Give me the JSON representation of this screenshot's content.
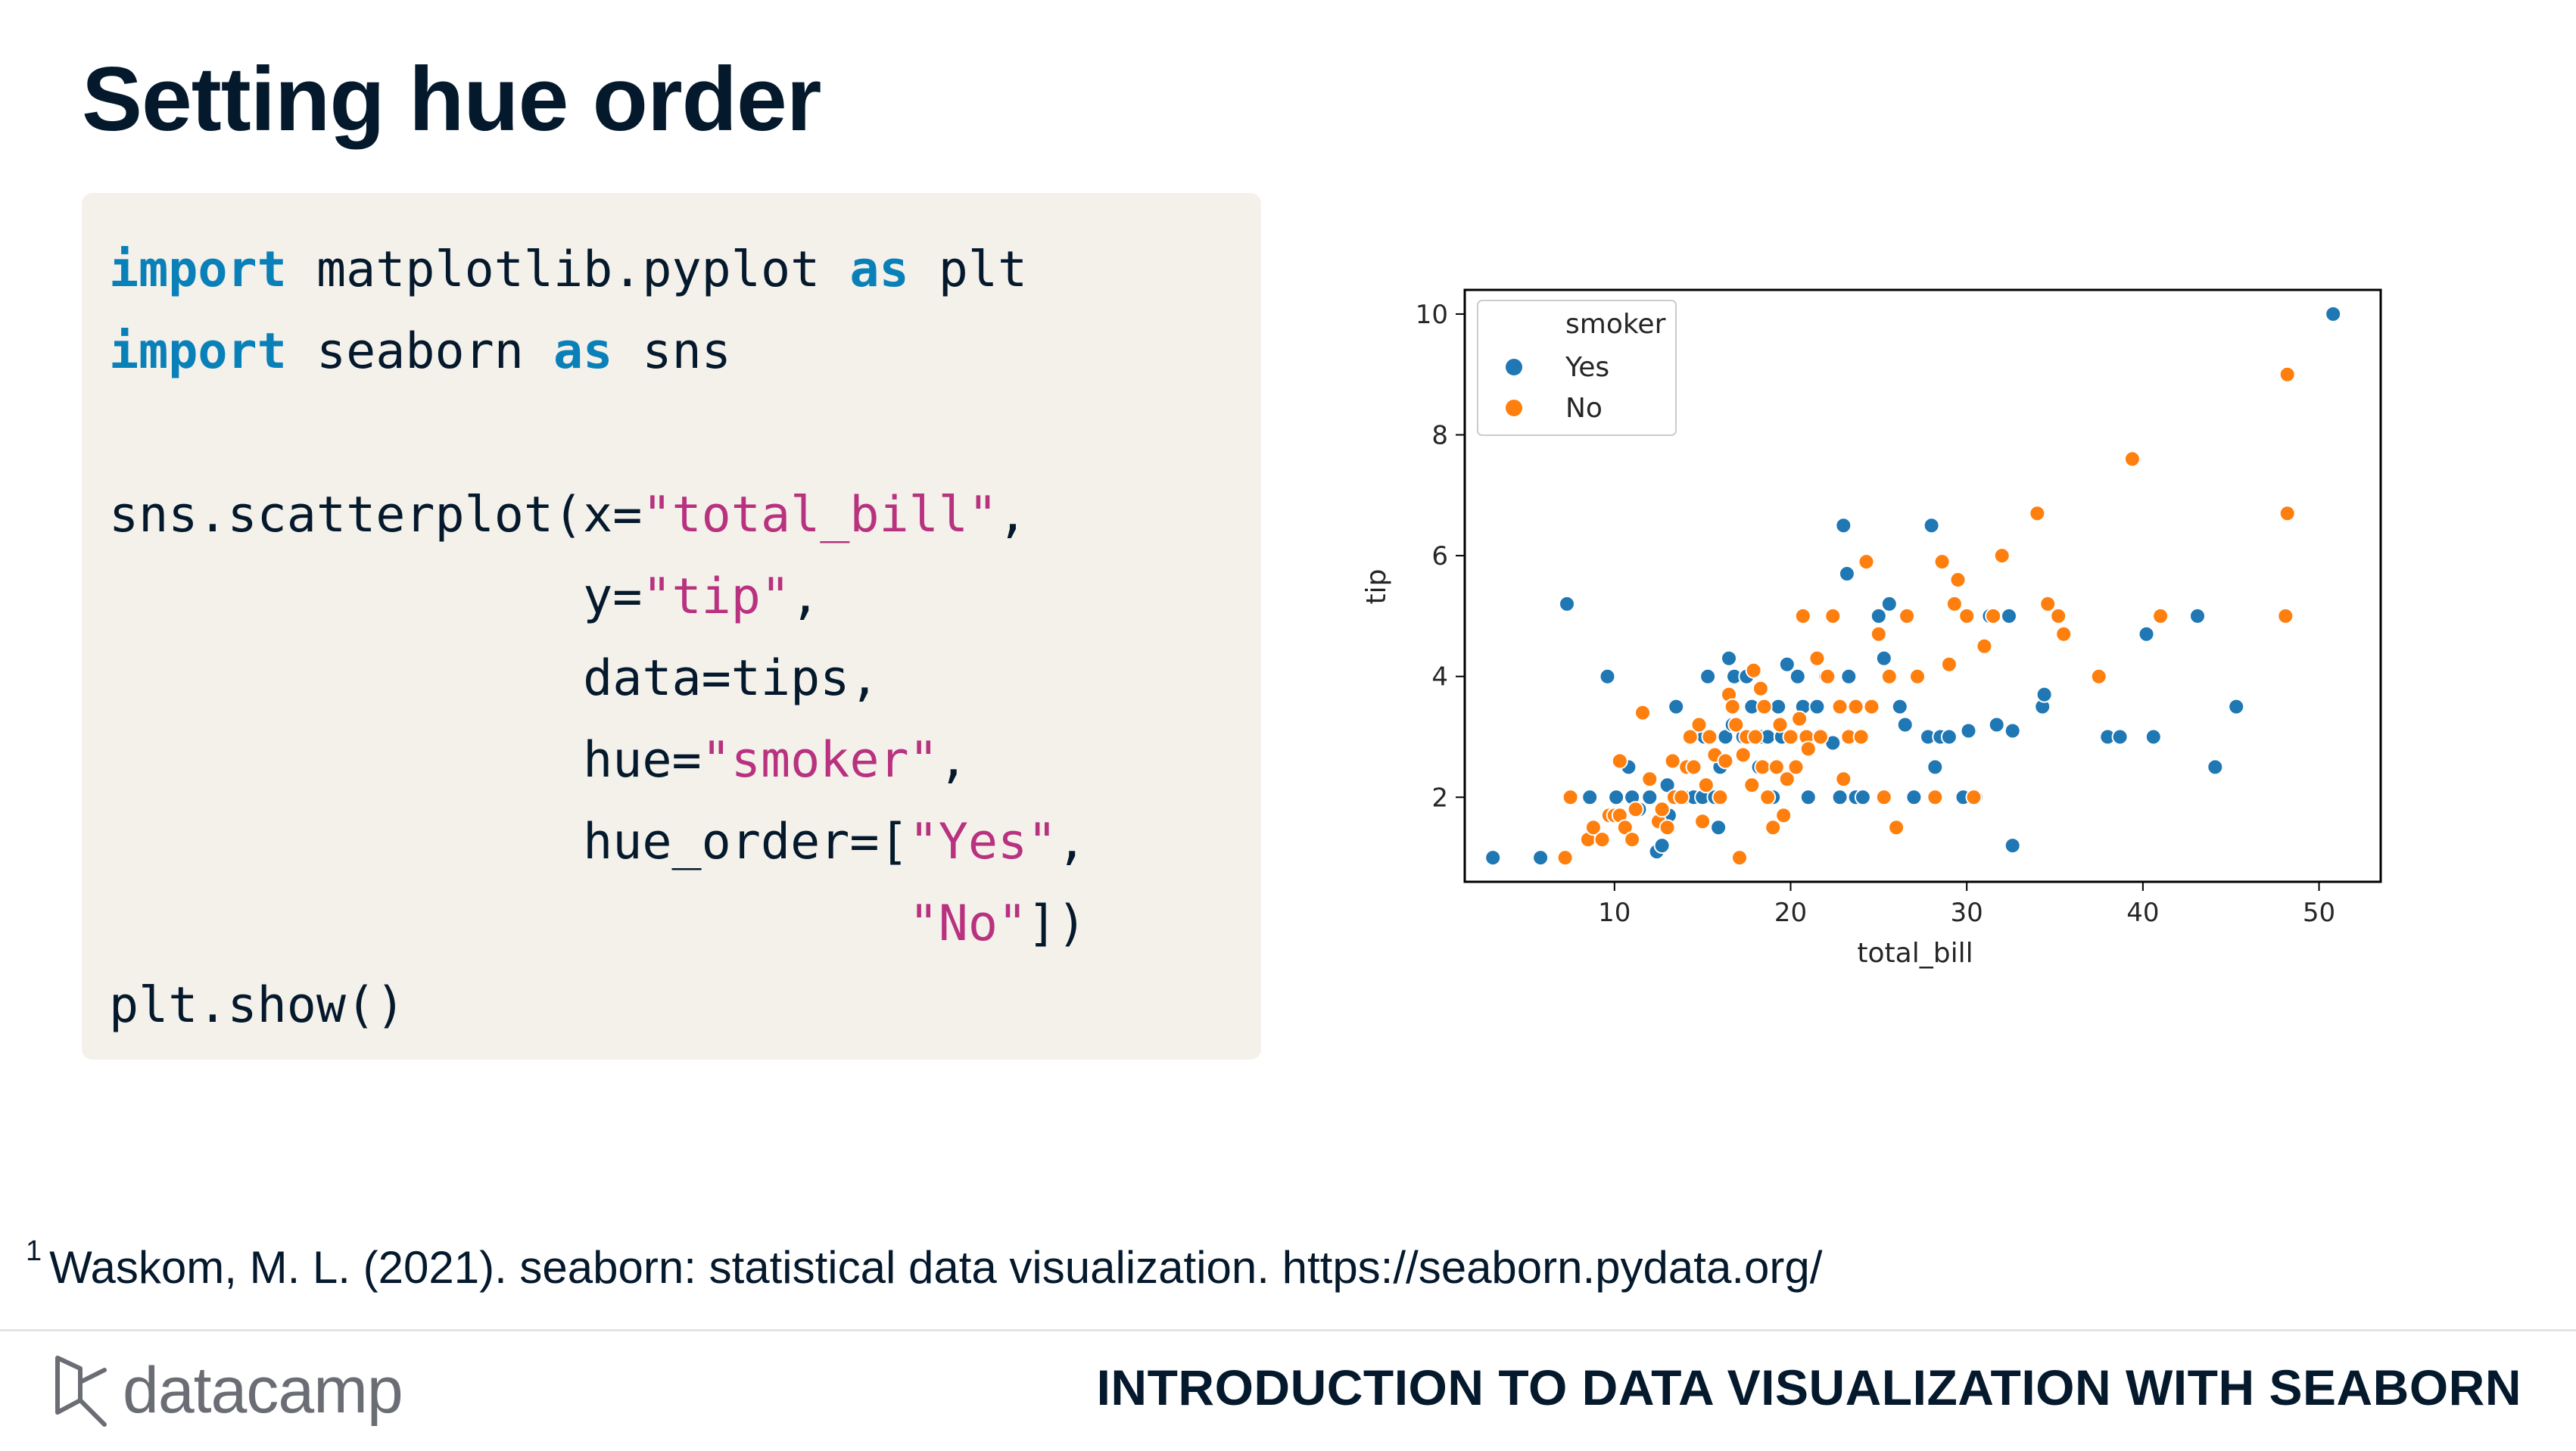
{
  "slide": {
    "title": "Setting hue order",
    "code": [
      [
        {
          "t": "kw",
          "v": "import"
        },
        {
          "t": "",
          "v": " matplotlib.pyplot "
        },
        {
          "t": "kw",
          "v": "as"
        },
        {
          "t": "",
          "v": " plt"
        }
      ],
      [
        {
          "t": "kw",
          "v": "import"
        },
        {
          "t": "",
          "v": " seaborn "
        },
        {
          "t": "kw",
          "v": "as"
        },
        {
          "t": "",
          "v": " sns"
        }
      ],
      [],
      [
        {
          "t": "",
          "v": "sns.scatterplot(x="
        },
        {
          "t": "str",
          "v": "\"total_bill\""
        },
        {
          "t": "",
          "v": ","
        }
      ],
      [
        {
          "t": "",
          "v": "                y="
        },
        {
          "t": "str",
          "v": "\"tip\""
        },
        {
          "t": "",
          "v": ","
        }
      ],
      [
        {
          "t": "",
          "v": "                data=tips,"
        }
      ],
      [
        {
          "t": "",
          "v": "                hue="
        },
        {
          "t": "str",
          "v": "\"smoker\""
        },
        {
          "t": "",
          "v": ","
        }
      ],
      [
        {
          "t": "",
          "v": "                hue_order=["
        },
        {
          "t": "str",
          "v": "\"Yes\""
        },
        {
          "t": "",
          "v": ","
        }
      ],
      [
        {
          "t": "",
          "v": "                           "
        },
        {
          "t": "str",
          "v": "\"No\""
        },
        {
          "t": "",
          "v": "])"
        }
      ],
      [
        {
          "t": "",
          "v": "plt.show()"
        }
      ]
    ],
    "footnote_marker": "1",
    "footnote": "Waskom, M. L. (2021). seaborn: statistical data visualization. https://seaborn.pydata.org/",
    "brand": "datacamp",
    "course_title": "INTRODUCTION TO DATA VISUALIZATION WITH SEABORN"
  },
  "colors": {
    "keyword": "#0a80b9",
    "string": "#b83280",
    "yes": "#1f77b4",
    "no": "#ff7f0e",
    "code_bg": "#f4f1ea"
  },
  "chart_data": {
    "type": "scatter",
    "xlabel": "total_bill",
    "ylabel": "tip",
    "xlim": [
      1.5,
      53.5
    ],
    "ylim": [
      0.6,
      10.4
    ],
    "xticks": [
      10,
      20,
      30,
      40,
      50
    ],
    "yticks": [
      2,
      4,
      6,
      8,
      10
    ],
    "legend": {
      "title": "smoker",
      "position": "upper-left"
    },
    "series": [
      {
        "name": "Yes",
        "color": "#1f77b4",
        "points": [
          [
            3.1,
            1.0
          ],
          [
            5.8,
            1.0
          ],
          [
            7.3,
            5.2
          ],
          [
            8.6,
            2.0
          ],
          [
            9.6,
            4.0
          ],
          [
            10.1,
            2.0
          ],
          [
            10.8,
            2.5
          ],
          [
            11.0,
            2.0
          ],
          [
            11.4,
            1.8
          ],
          [
            12.0,
            2.0
          ],
          [
            12.4,
            1.1
          ],
          [
            12.7,
            1.2
          ],
          [
            13.0,
            2.2
          ],
          [
            13.1,
            1.7
          ],
          [
            13.4,
            2.0
          ],
          [
            13.5,
            3.5
          ],
          [
            14.0,
            2.0
          ],
          [
            14.5,
            2.0
          ],
          [
            15.0,
            2.0
          ],
          [
            15.1,
            3.0
          ],
          [
            15.3,
            4.0
          ],
          [
            15.7,
            2.0
          ],
          [
            15.9,
            1.5
          ],
          [
            16.0,
            2.5
          ],
          [
            16.3,
            3.0
          ],
          [
            16.5,
            4.3
          ],
          [
            16.7,
            3.2
          ],
          [
            16.8,
            4.0
          ],
          [
            17.3,
            3.0
          ],
          [
            17.5,
            4.0
          ],
          [
            17.8,
            3.5
          ],
          [
            18.2,
            2.5
          ],
          [
            18.3,
            3.0
          ],
          [
            18.7,
            3.0
          ],
          [
            19.0,
            2.0
          ],
          [
            19.3,
            3.5
          ],
          [
            19.5,
            3.0
          ],
          [
            19.8,
            4.2
          ],
          [
            20.1,
            3.0
          ],
          [
            20.4,
            4.0
          ],
          [
            20.7,
            3.5
          ],
          [
            21.0,
            2.0
          ],
          [
            21.5,
            3.5
          ],
          [
            22.0,
            4.0
          ],
          [
            22.4,
            2.9
          ],
          [
            22.8,
            2.0
          ],
          [
            23.0,
            6.5
          ],
          [
            23.2,
            5.7
          ],
          [
            23.3,
            4.0
          ],
          [
            23.7,
            2.0
          ],
          [
            24.1,
            2.0
          ],
          [
            24.5,
            3.5
          ],
          [
            25.0,
            5.0
          ],
          [
            25.3,
            4.3
          ],
          [
            25.6,
            5.2
          ],
          [
            26.2,
            3.5
          ],
          [
            26.5,
            3.2
          ],
          [
            27.0,
            2.0
          ],
          [
            27.2,
            4.0
          ],
          [
            27.8,
            3.0
          ],
          [
            28.0,
            6.5
          ],
          [
            28.2,
            2.5
          ],
          [
            28.5,
            3.0
          ],
          [
            29.0,
            3.0
          ],
          [
            29.8,
            2.0
          ],
          [
            30.1,
            3.1
          ],
          [
            30.5,
            2.0
          ],
          [
            31.3,
            5.0
          ],
          [
            31.7,
            3.2
          ],
          [
            32.4,
            5.0
          ],
          [
            32.6,
            3.1
          ],
          [
            32.6,
            1.2
          ],
          [
            34.3,
            3.5
          ],
          [
            34.4,
            3.7
          ],
          [
            38.0,
            3.0
          ],
          [
            38.7,
            3.0
          ],
          [
            40.2,
            4.7
          ],
          [
            40.6,
            3.0
          ],
          [
            43.1,
            5.0
          ],
          [
            44.1,
            2.5
          ],
          [
            45.3,
            3.5
          ],
          [
            50.8,
            10.0
          ]
        ]
      },
      {
        "name": "No",
        "color": "#ff7f0e",
        "points": [
          [
            7.2,
            1.0
          ],
          [
            7.5,
            2.0
          ],
          [
            8.5,
            1.3
          ],
          [
            8.8,
            1.5
          ],
          [
            9.3,
            1.3
          ],
          [
            9.7,
            1.7
          ],
          [
            10.0,
            1.7
          ],
          [
            10.3,
            1.7
          ],
          [
            10.3,
            2.6
          ],
          [
            10.6,
            1.5
          ],
          [
            11.0,
            1.3
          ],
          [
            11.2,
            1.8
          ],
          [
            11.6,
            3.4
          ],
          [
            12.0,
            2.3
          ],
          [
            12.5,
            1.6
          ],
          [
            12.7,
            1.8
          ],
          [
            13.0,
            1.5
          ],
          [
            13.3,
            2.6
          ],
          [
            13.4,
            2.0
          ],
          [
            13.8,
            2.0
          ],
          [
            14.1,
            2.5
          ],
          [
            14.3,
            3.0
          ],
          [
            14.5,
            2.5
          ],
          [
            14.8,
            3.2
          ],
          [
            15.0,
            1.6
          ],
          [
            15.2,
            2.2
          ],
          [
            15.4,
            3.0
          ],
          [
            15.7,
            2.7
          ],
          [
            16.0,
            2.0
          ],
          [
            16.3,
            2.6
          ],
          [
            16.5,
            3.7
          ],
          [
            16.7,
            3.5
          ],
          [
            16.9,
            3.2
          ],
          [
            17.1,
            1.0
          ],
          [
            17.3,
            2.7
          ],
          [
            17.5,
            3.0
          ],
          [
            17.8,
            2.2
          ],
          [
            17.9,
            4.1
          ],
          [
            18.0,
            3.0
          ],
          [
            18.3,
            3.8
          ],
          [
            18.4,
            2.5
          ],
          [
            18.5,
            3.5
          ],
          [
            18.7,
            2.0
          ],
          [
            19.0,
            1.5
          ],
          [
            19.2,
            2.5
          ],
          [
            19.4,
            3.2
          ],
          [
            19.6,
            1.7
          ],
          [
            19.8,
            2.3
          ],
          [
            20.0,
            3.0
          ],
          [
            20.3,
            2.5
          ],
          [
            20.5,
            3.3
          ],
          [
            20.7,
            5.0
          ],
          [
            20.9,
            3.0
          ],
          [
            21.0,
            2.8
          ],
          [
            21.5,
            4.3
          ],
          [
            21.7,
            3.0
          ],
          [
            22.1,
            4.0
          ],
          [
            22.4,
            5.0
          ],
          [
            22.8,
            3.5
          ],
          [
            23.0,
            2.3
          ],
          [
            23.3,
            3.0
          ],
          [
            23.7,
            3.5
          ],
          [
            24.0,
            3.0
          ],
          [
            24.3,
            5.9
          ],
          [
            24.6,
            3.5
          ],
          [
            25.0,
            4.7
          ],
          [
            25.3,
            2.0
          ],
          [
            25.6,
            4.0
          ],
          [
            26.0,
            1.5
          ],
          [
            26.6,
            5.0
          ],
          [
            27.2,
            4.0
          ],
          [
            28.2,
            2.0
          ],
          [
            28.6,
            5.9
          ],
          [
            29.0,
            4.2
          ],
          [
            29.3,
            5.2
          ],
          [
            29.5,
            5.6
          ],
          [
            30.0,
            5.0
          ],
          [
            30.4,
            2.0
          ],
          [
            31.0,
            4.5
          ],
          [
            31.5,
            5.0
          ],
          [
            32.0,
            6.0
          ],
          [
            34.0,
            6.7
          ],
          [
            34.6,
            5.2
          ],
          [
            35.2,
            5.0
          ],
          [
            35.5,
            4.7
          ],
          [
            37.5,
            4.0
          ],
          [
            39.4,
            7.6
          ],
          [
            41.0,
            5.0
          ],
          [
            48.2,
            9.0
          ],
          [
            48.2,
            6.7
          ],
          [
            48.1,
            5.0
          ]
        ]
      }
    ]
  }
}
